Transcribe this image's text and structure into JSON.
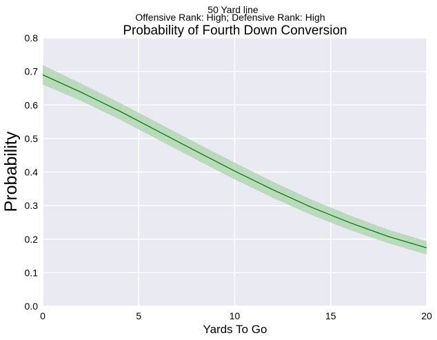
{
  "chart_data": {
    "type": "line",
    "suptitle_line1": "50 Yard line",
    "suptitle_line2": "Offensive Rank: High; Defensive Rank: High",
    "title": "Probability of Fourth Down Conversion",
    "xlabel": "Yards To Go",
    "ylabel": "Probability",
    "xlim": [
      0,
      20
    ],
    "ylim": [
      0,
      0.8
    ],
    "xticks": [
      0,
      5,
      10,
      15,
      20
    ],
    "xtick_labels": [
      "0",
      "5",
      "10",
      "15",
      "20"
    ],
    "yticks": [
      0,
      0.1,
      0.2,
      0.3,
      0.4,
      0.5,
      0.6,
      0.7,
      0.8
    ],
    "ytick_labels": [
      "0.0",
      "0.1",
      "0.2",
      "0.3",
      "0.4",
      "0.5",
      "0.6",
      "0.7",
      "0.8"
    ],
    "grid": true,
    "colors": {
      "background": "#EAEAF2",
      "grid": "#ffffff",
      "line": "#008000",
      "band": "#a9d3ab"
    },
    "series": [
      {
        "x": [
          0,
          2,
          4,
          6,
          8,
          10,
          12,
          14,
          16,
          18,
          20
        ],
        "y": [
          0.69,
          0.638,
          0.582,
          0.522,
          0.462,
          0.403,
          0.347,
          0.295,
          0.249,
          0.208,
          0.174
        ],
        "y_lower": [
          0.661,
          0.612,
          0.557,
          0.497,
          0.437,
          0.378,
          0.323,
          0.272,
          0.227,
          0.188,
          0.154
        ],
        "y_upper": [
          0.719,
          0.664,
          0.607,
          0.547,
          0.487,
          0.428,
          0.371,
          0.318,
          0.271,
          0.228,
          0.194
        ]
      }
    ]
  }
}
